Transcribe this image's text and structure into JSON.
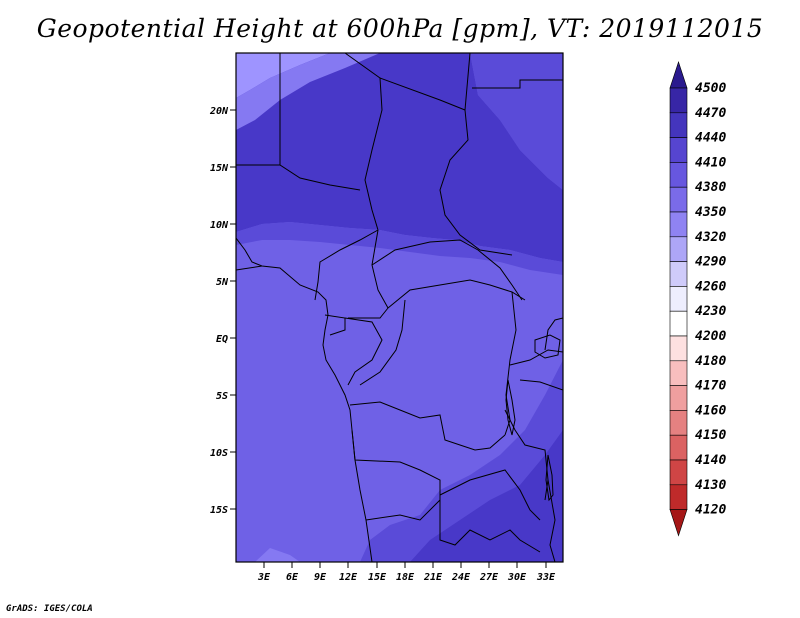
{
  "title": "Geopotential Height at 600hPa [gpm], VT: 2019112015",
  "credit": "GrADS: IGES/COLA",
  "map": {
    "lat_labels": [
      "20N",
      "15N",
      "10N",
      "5N",
      "EQ",
      "5S",
      "10S",
      "15S"
    ],
    "lon_labels": [
      "3E",
      "6E",
      "9E",
      "12E",
      "15E",
      "18E",
      "21E",
      "24E",
      "27E",
      "30E",
      "33E"
    ],
    "fill_colors": {
      "c4320": "#9e94ff",
      "c4350": "#8579f2",
      "c4380": "#6f61e6",
      "c4410": "#5a4bd8",
      "c4440": "#4838c8"
    }
  },
  "colorbar": {
    "levels": [
      "4500",
      "4470",
      "4440",
      "4410",
      "4380",
      "4350",
      "4320",
      "4290",
      "4260",
      "4230",
      "4200",
      "4180",
      "4170",
      "4160",
      "4150",
      "4140",
      "4130",
      "4120"
    ],
    "colors": [
      "#2a1a8e",
      "#3726a6",
      "#4435bd",
      "#5645d0",
      "#6757df",
      "#7a6be9",
      "#8f83f2",
      "#ada6f7",
      "#cfcbfa",
      "#eeeefe",
      "#ffffff",
      "#fde0e0",
      "#f8bebe",
      "#ef9f9f",
      "#e58181",
      "#db6262",
      "#cf4545",
      "#bf2a2a",
      "#a51717"
    ]
  }
}
